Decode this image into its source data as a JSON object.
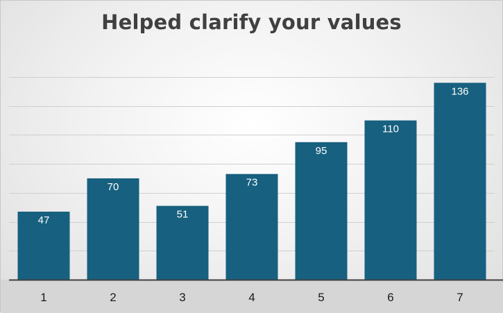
{
  "chart_data": {
    "type": "bar",
    "title": "Helped clarify your values",
    "categories": [
      "1",
      "2",
      "3",
      "4",
      "5",
      "6",
      "7"
    ],
    "values": [
      47,
      70,
      51,
      73,
      95,
      110,
      136
    ],
    "xlabel": "",
    "ylabel": "",
    "ylim": [
      0,
      140
    ],
    "grid": true,
    "legend": "none",
    "data_labels": true,
    "colors": {
      "bar": "#17607f",
      "grid": "#cfcfcf",
      "axis": "#404040",
      "label": "#ffffff",
      "tick": "#1a1a1a"
    }
  }
}
